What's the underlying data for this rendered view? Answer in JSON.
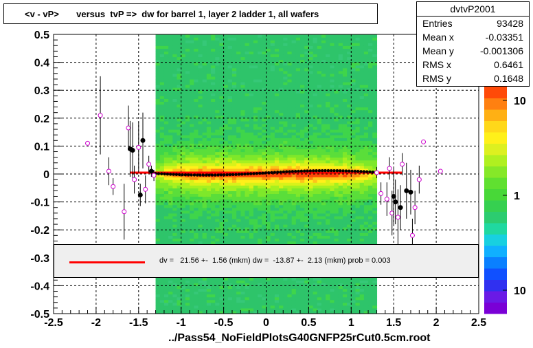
{
  "title": "<v - vP>       versus  tvP =>  dw for barrel 1, layer 2 ladder 1, all wafers",
  "stats": {
    "name": "dvtvP2001",
    "rows": [
      {
        "label": "Entries",
        "value": "93428"
      },
      {
        "label": "Mean x",
        "value": "-0.03351"
      },
      {
        "label": "Mean y",
        "value": "-0.001306"
      },
      {
        "label": "RMS x",
        "value": "0.6461"
      },
      {
        "label": "RMS y",
        "value": "0.1648"
      }
    ]
  },
  "fit_legend": "dv =   21.56 +-  1.56 (mkm) dw =  -13.87 +-  2.13 (mkm) prob = 0.003",
  "xlabel": "../Pass54_NoFieldPlotsG40GNFP25rCut0.5cm.root",
  "colors": {
    "fit_line": "#ff0000",
    "profile_black": "#000000",
    "profile_open": "#cc00cc"
  },
  "chart_data": {
    "type": "heatmap",
    "xlim": [
      -2.5,
      2.5
    ],
    "ylim": [
      -0.5,
      0.5
    ],
    "x_ticks": [
      "-2.5",
      "-2",
      "-1.5",
      "-1",
      "-0.5",
      "0",
      "0.5",
      "1",
      "1.5",
      "2",
      "2.5"
    ],
    "y_ticks": [
      "-0.5",
      "-0.4",
      "-0.3",
      "-0.2",
      "-0.1",
      "0",
      "0.1",
      "0.2",
      "0.3",
      "0.4",
      "0.5"
    ],
    "grid": true,
    "z_scale": "log",
    "z_ticks": [
      "10",
      "1",
      "10"
    ],
    "heatmap_extent": {
      "x": [
        -1.3,
        1.3
      ],
      "y": [
        -0.5,
        0.5
      ],
      "core_y": [
        -0.03,
        0.03
      ]
    },
    "profile_points": [
      {
        "x": -2.1,
        "y": 0.11,
        "err": 0.0,
        "open": true
      },
      {
        "x": -1.95,
        "y": 0.21,
        "err": 0.14,
        "open": true
      },
      {
        "x": -1.85,
        "y": 0.01,
        "err": 0.05,
        "open": true
      },
      {
        "x": -1.8,
        "y": -0.045,
        "err": 0.03,
        "open": true
      },
      {
        "x": -1.67,
        "y": -0.135,
        "err": 0.1,
        "open": true
      },
      {
        "x": -1.62,
        "y": 0.165,
        "err": 0.08,
        "open": true
      },
      {
        "x": -1.6,
        "y": 0.09,
        "err": 0.1,
        "open": false
      },
      {
        "x": -1.57,
        "y": 0.085,
        "err": 0.1,
        "open": false
      },
      {
        "x": -1.55,
        "y": -0.02,
        "err": 0.05,
        "open": true
      },
      {
        "x": -1.5,
        "y": 0.095,
        "err": 0.09,
        "open": true
      },
      {
        "x": -1.48,
        "y": -0.075,
        "err": 0.04,
        "open": false
      },
      {
        "x": -1.45,
        "y": 0.12,
        "err": 0.1,
        "open": false
      },
      {
        "x": -1.42,
        "y": -0.055,
        "err": 0.05,
        "open": true
      },
      {
        "x": -1.38,
        "y": 0.035,
        "err": 0.03,
        "open": true
      },
      {
        "x": -1.35,
        "y": 0.01,
        "err": 0.02,
        "open": false
      },
      {
        "x": -1.32,
        "y": -0.005,
        "err": 0.02,
        "open": true
      },
      {
        "x": 1.3,
        "y": 0.005,
        "err": 0.02,
        "open": true
      },
      {
        "x": 1.35,
        "y": -0.07,
        "err": 0.04,
        "open": true
      },
      {
        "x": 1.42,
        "y": -0.09,
        "err": 0.06,
        "open": true
      },
      {
        "x": 1.45,
        "y": 0.02,
        "err": 0.04,
        "open": true
      },
      {
        "x": 1.48,
        "y": -0.14,
        "err": 0.08,
        "open": true
      },
      {
        "x": 1.5,
        "y": -0.08,
        "err": 0.1,
        "open": false
      },
      {
        "x": 1.52,
        "y": -0.1,
        "err": 0.08,
        "open": false
      },
      {
        "x": 1.55,
        "y": -0.155,
        "err": 0.1,
        "open": true
      },
      {
        "x": 1.58,
        "y": -0.12,
        "err": 0.08,
        "open": false
      },
      {
        "x": 1.6,
        "y": 0.035,
        "err": 0.04,
        "open": true
      },
      {
        "x": 1.65,
        "y": -0.06,
        "err": 0.1,
        "open": false
      },
      {
        "x": 1.7,
        "y": -0.065,
        "err": 0.08,
        "open": false
      },
      {
        "x": 1.72,
        "y": -0.22,
        "err": 0.06,
        "open": true
      },
      {
        "x": 1.75,
        "y": -0.12,
        "err": 0.06,
        "open": true
      },
      {
        "x": 1.8,
        "y": -0.02,
        "err": 0.05,
        "open": true
      },
      {
        "x": 1.85,
        "y": 0.115,
        "err": 0.0,
        "open": true
      },
      {
        "x": 2.05,
        "y": 0.01,
        "err": 0.0,
        "open": true
      }
    ],
    "fit": {
      "x_from": -1.6,
      "x_to": 1.6,
      "y": 0.005
    }
  }
}
